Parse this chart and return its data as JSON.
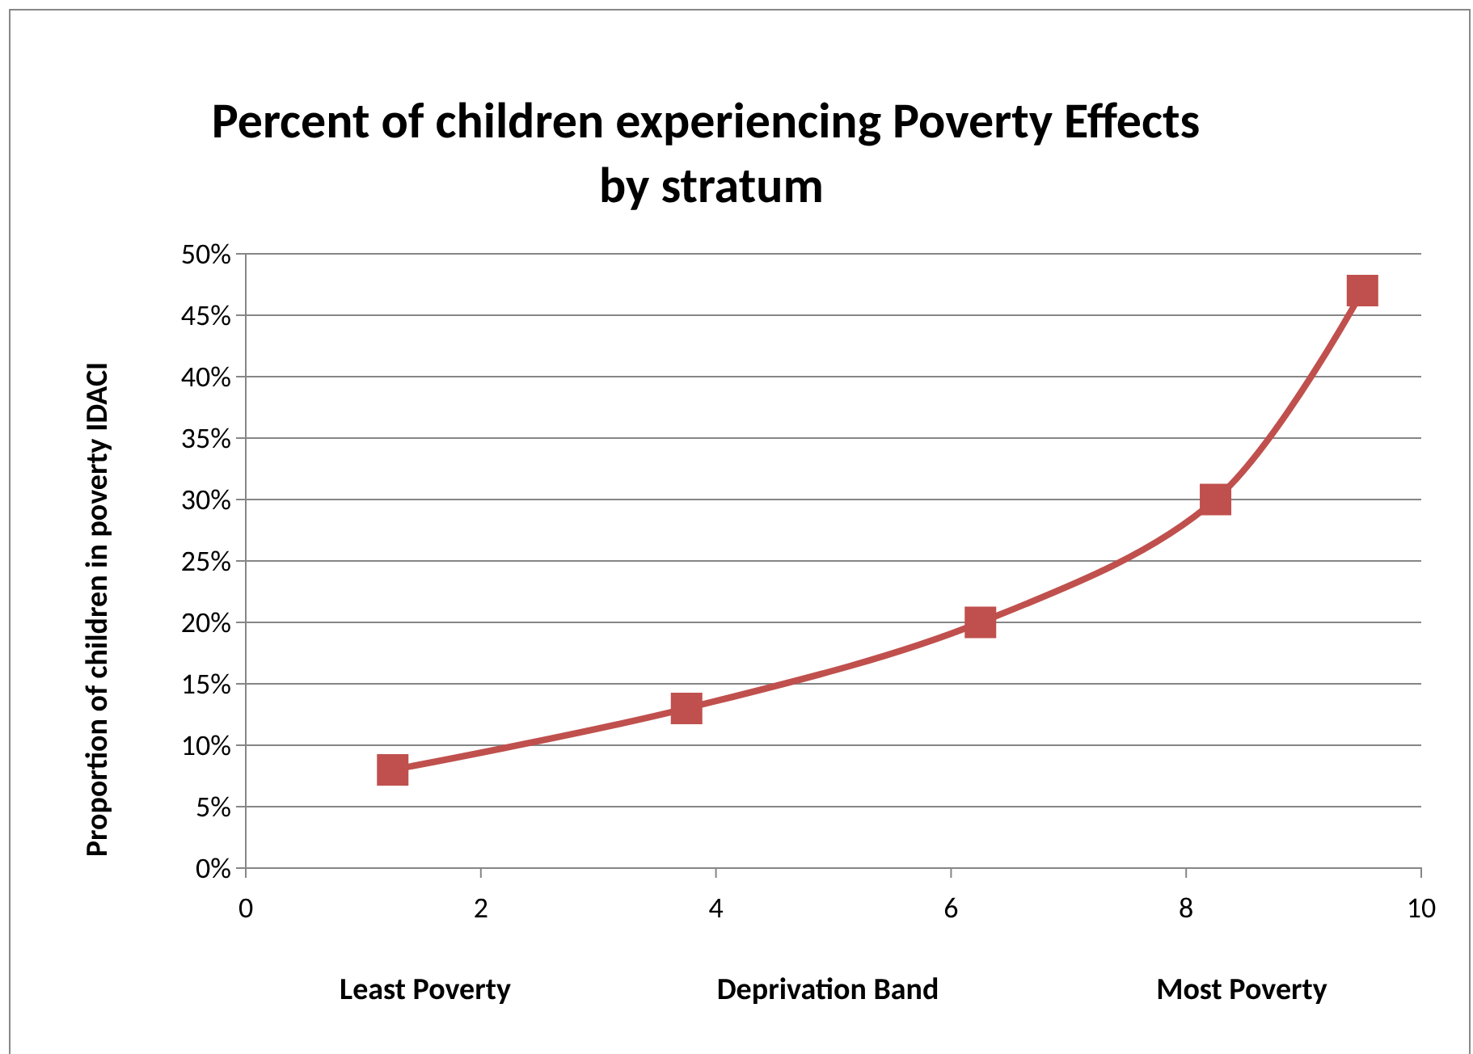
{
  "chart_data": {
    "type": "line",
    "title": "Percent of children experiencing Poverty Effects  by stratum",
    "xlabel": "Deprivation Band",
    "ylabel": "Proportion of children in poverty IDACI",
    "annotations": [
      "Least Poverty",
      "Most Poverty"
    ],
    "x": [
      1.25,
      3.75,
      6.25,
      8.25,
      9.5
    ],
    "series": [
      {
        "color": "#c0504d",
        "values": [
          8,
          13,
          20,
          30,
          47
        ]
      }
    ],
    "xlim": [
      0,
      10
    ],
    "xticks": [
      0,
      2,
      4,
      6,
      8,
      10
    ],
    "ylim": [
      0,
      50
    ],
    "yticks": [
      {
        "value": 0,
        "label": "0%"
      },
      {
        "value": 5,
        "label": "5%"
      },
      {
        "value": 10,
        "label": "10%"
      },
      {
        "value": 15,
        "label": "15%"
      },
      {
        "value": 20,
        "label": "20%"
      },
      {
        "value": 25,
        "label": "25%"
      },
      {
        "value": 30,
        "label": "30%"
      },
      {
        "value": 35,
        "label": "35%"
      },
      {
        "value": 40,
        "label": "40%"
      },
      {
        "value": 45,
        "label": "45%"
      },
      {
        "value": 50,
        "label": "50%"
      }
    ],
    "grid": "y",
    "marker": "square",
    "line_style": "solid"
  }
}
